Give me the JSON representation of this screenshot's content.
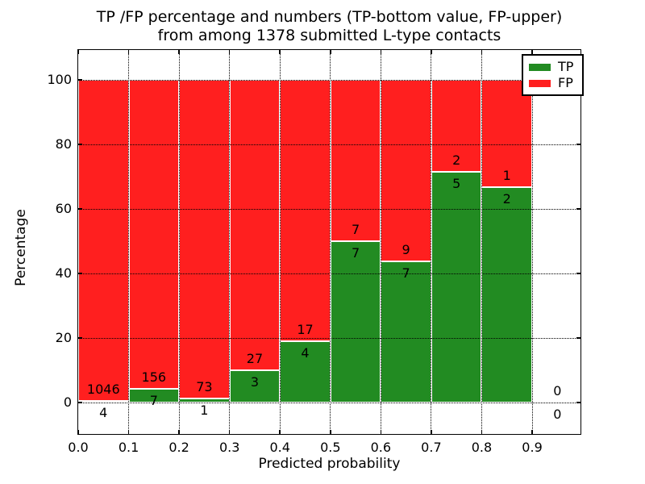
{
  "title": {
    "line1": "TP /FP percentage and numbers (TP-bottom value, FP-upper)",
    "line2": "from among 1378 submitted L-type contacts"
  },
  "chart_data": {
    "type": "bar",
    "subtype": "stacked-percentage-histogram",
    "title": "TP /FP percentage and numbers (TP-bottom value, FP-upper) from among 1378 submitted L-type contacts",
    "xlabel": "Predicted probability",
    "ylabel": "Percentage",
    "total_submitted": 1378,
    "bin_width": 0.1,
    "categories": [
      "0.0-0.1",
      "0.1-0.2",
      "0.2-0.3",
      "0.3-0.4",
      "0.4-0.5",
      "0.5-0.6",
      "0.6-0.7",
      "0.7-0.8",
      "0.8-0.9",
      "0.9-1.0"
    ],
    "series": [
      {
        "name": "TP",
        "color": "#228b22",
        "values": [
          4,
          7,
          1,
          3,
          4,
          7,
          7,
          5,
          2,
          0
        ]
      },
      {
        "name": "FP",
        "color": "#ff1f1f",
        "values": [
          1046,
          156,
          73,
          27,
          17,
          7,
          9,
          2,
          1,
          0
        ]
      }
    ],
    "tp_percent_per_bin": [
      0.38,
      4.29,
      1.35,
      10.0,
      19.05,
      50.0,
      43.75,
      71.43,
      66.67,
      0
    ],
    "xticks": [
      "0.0",
      "0.1",
      "0.2",
      "0.3",
      "0.4",
      "0.5",
      "0.6",
      "0.7",
      "0.8",
      "0.9"
    ],
    "yticks": [
      "0",
      "20",
      "40",
      "60",
      "80",
      "100"
    ],
    "ylim": [
      -9.75,
      109.75
    ],
    "xlim": [
      0.0,
      1.0
    ],
    "grid": {
      "on": true,
      "style": "dotted",
      "color": "#000000"
    },
    "legend": {
      "position": "upper-right",
      "entries": [
        {
          "label": "TP",
          "color": "#228b22"
        },
        {
          "label": "FP",
          "color": "#ff1f1f"
        }
      ]
    }
  },
  "colors": {
    "tp": "#228b22",
    "fp": "#ff1f1f",
    "background": "#ffffff",
    "text": "#000000"
  }
}
